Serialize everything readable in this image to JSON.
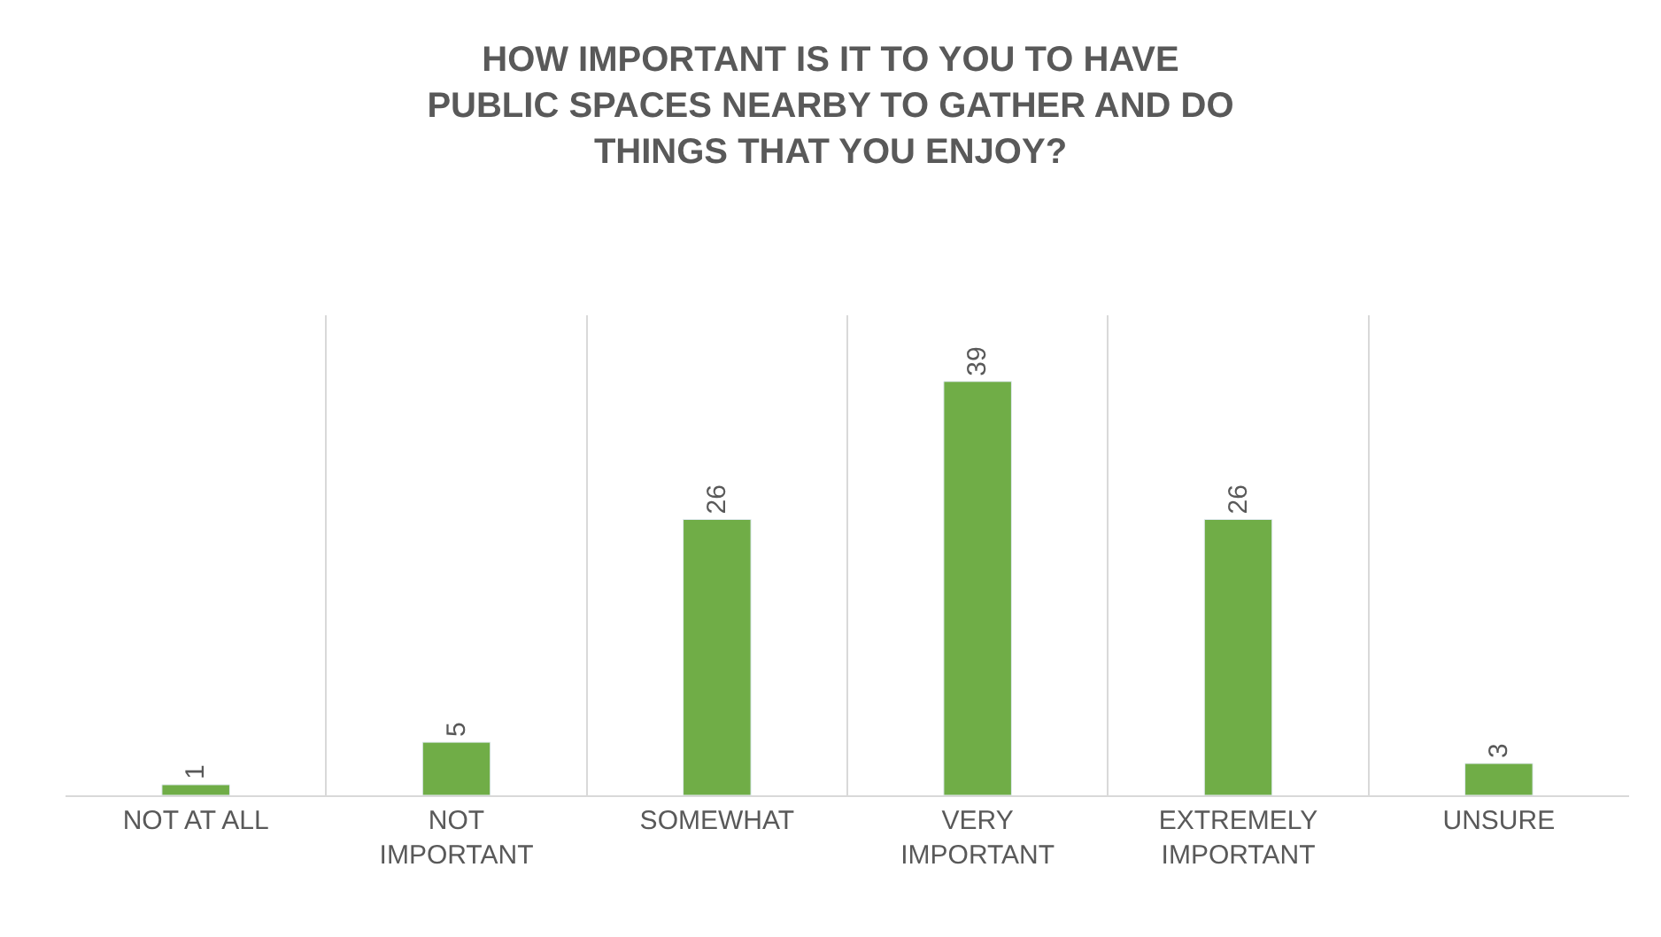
{
  "chart_data": {
    "type": "bar",
    "title": "HOW IMPORTANT IS IT TO YOU TO HAVE PUBLIC SPACES NEARBY TO GATHER AND DO THINGS THAT YOU ENJOY?",
    "categories": [
      "NOT AT ALL",
      "NOT IMPORTANT",
      "SOMEWHAT",
      "VERY IMPORTANT",
      "EXTREMELY IMPORTANT",
      "UNSURE"
    ],
    "values": [
      1,
      5,
      26,
      39,
      26,
      3
    ],
    "color": "#70ad47",
    "data_labels": true,
    "grid": "x",
    "legend": false
  }
}
